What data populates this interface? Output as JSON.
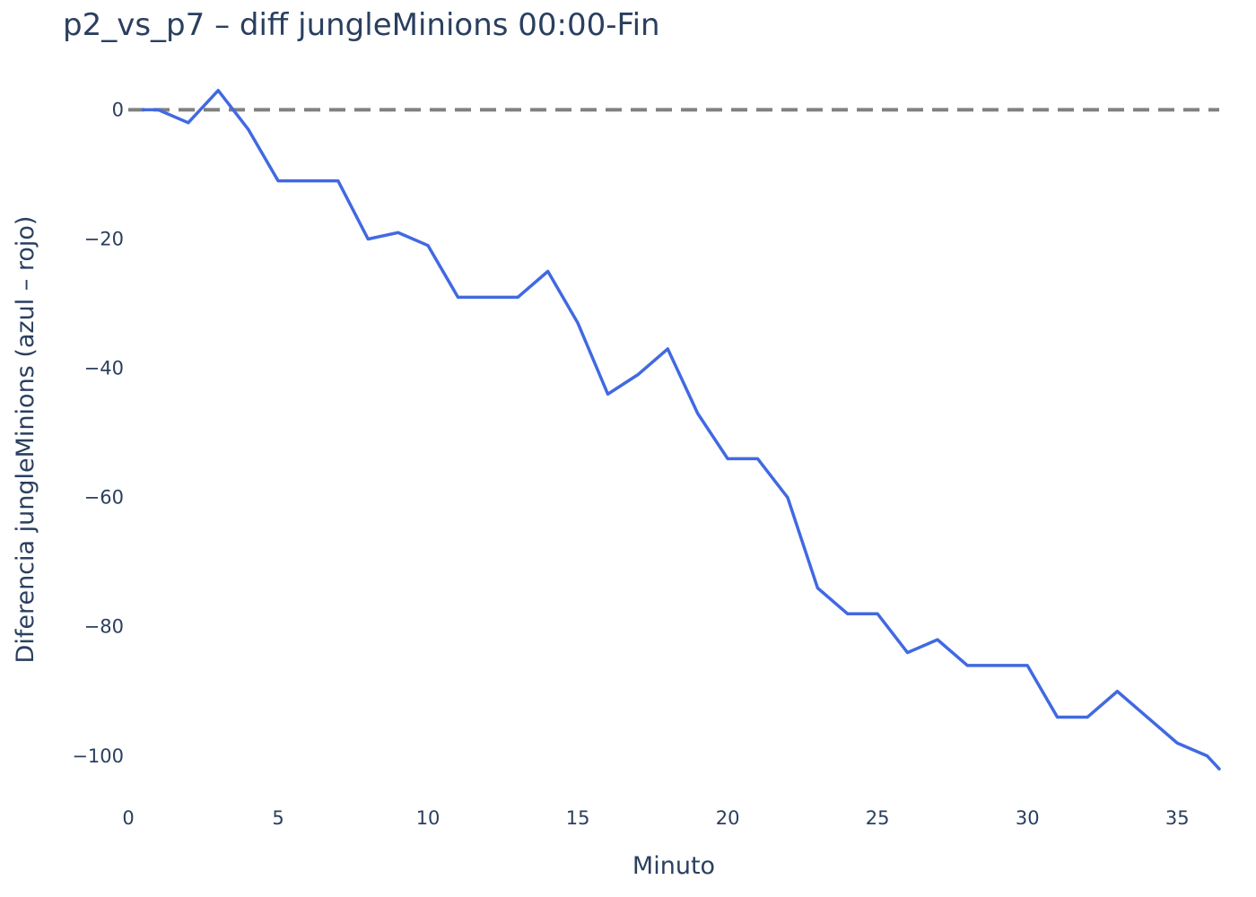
{
  "chart_data": {
    "type": "line",
    "title": "p2_vs_p7 – diff jungleMinions 00:00-Fin",
    "xlabel": "Minuto",
    "ylabel": "Diferencia jungleMinions (azul – rojo)",
    "xlim": [
      0,
      36.4
    ],
    "ylim": [
      -106,
      7
    ],
    "x_ticks": [
      0,
      5,
      10,
      15,
      20,
      25,
      30,
      35
    ],
    "y_ticks": [
      0,
      -20,
      -40,
      -60,
      -80,
      -100
    ],
    "y_tick_labels": [
      "0",
      "−20",
      "−40",
      "−60",
      "−80",
      "−100"
    ],
    "grid": false,
    "reference_line": {
      "y": 0,
      "style": "dashed",
      "color": "#808080"
    },
    "series": [
      {
        "color": "#4169e1",
        "x": [
          0.5,
          1,
          2,
          3,
          4,
          5,
          6,
          7,
          8,
          9,
          10,
          11,
          12,
          13,
          14,
          15,
          16,
          17,
          18,
          19,
          20,
          21,
          22,
          23,
          24,
          25,
          26,
          27,
          28,
          29,
          30,
          31,
          32,
          33,
          34,
          35,
          36,
          36.4
        ],
        "y": [
          0,
          0,
          -2,
          3,
          -3,
          -11,
          -11,
          -11,
          -20,
          -19,
          -21,
          -29,
          -29,
          -29,
          -25,
          -33,
          -44,
          -41,
          -37,
          -47,
          -54,
          -54,
          -60,
          -74,
          -78,
          -78,
          -84,
          -82,
          -86,
          -86,
          -86,
          -94,
          -94,
          -90,
          -94,
          -98,
          -100,
          -102
        ]
      }
    ]
  }
}
